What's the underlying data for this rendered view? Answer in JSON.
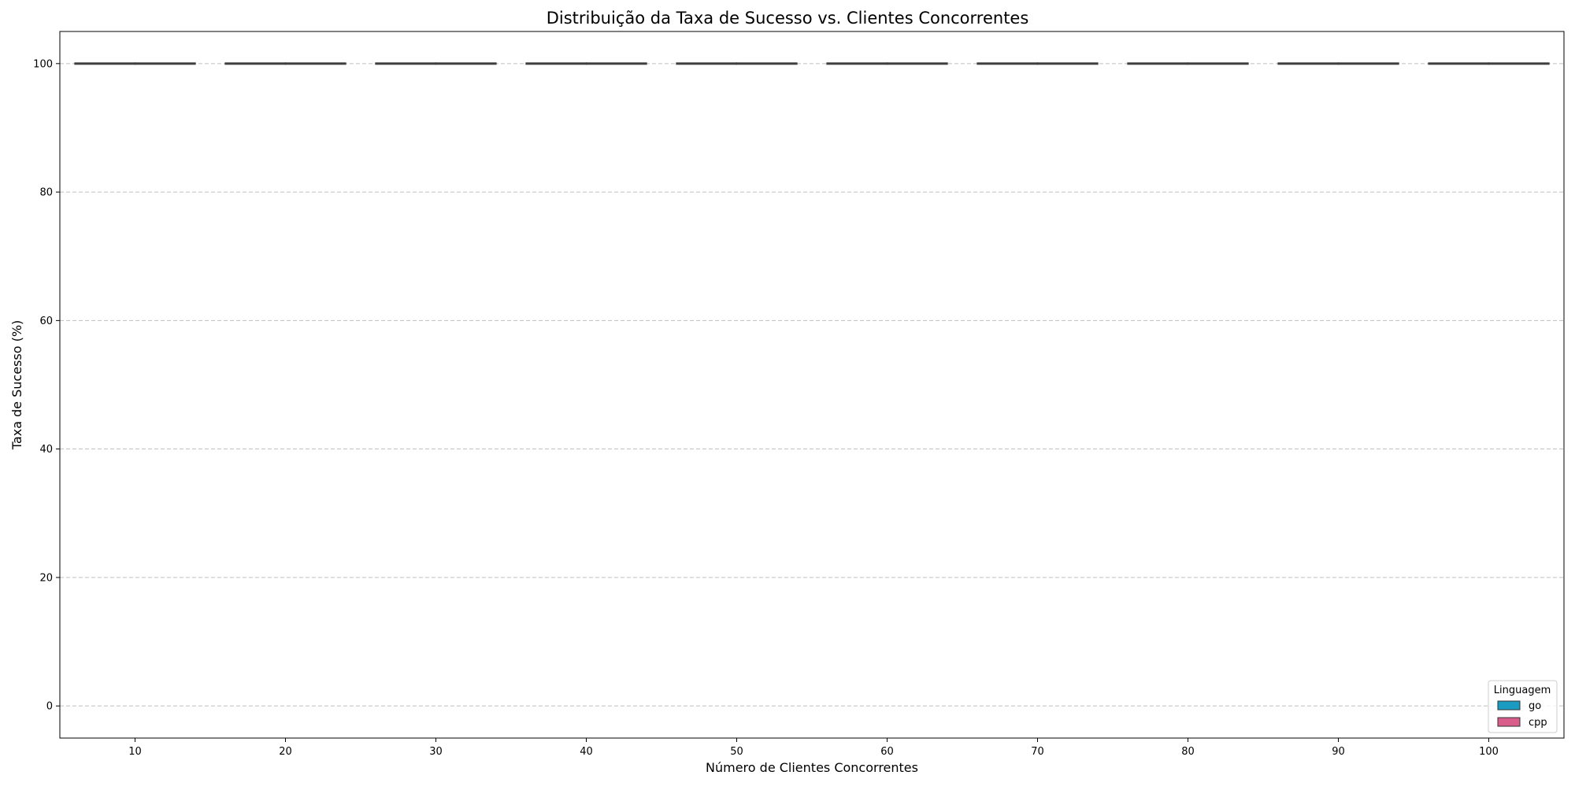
{
  "chart_data": {
    "type": "box",
    "title": "Distribuição da Taxa de Sucesso vs. Clientes Concorrentes",
    "xlabel": "Número de Clientes Concorrentes",
    "ylabel": "Taxa de Sucesso (%)",
    "categories": [
      "10",
      "20",
      "30",
      "40",
      "50",
      "60",
      "70",
      "80",
      "90",
      "100"
    ],
    "ylim": [
      -5,
      105
    ],
    "yticks": [
      0,
      20,
      40,
      60,
      80,
      100
    ],
    "grid": true,
    "grid_axis": "y",
    "legend": {
      "title": "Linguagem",
      "position": "lower-right"
    },
    "series": [
      {
        "name": "go",
        "color": "#1a9bc2",
        "values": [
          100,
          100,
          100,
          100,
          100,
          100,
          100,
          100,
          100,
          100
        ]
      },
      {
        "name": "cpp",
        "color": "#d95d8a",
        "values": [
          100,
          100,
          100,
          100,
          100,
          100,
          100,
          100,
          100,
          100
        ]
      }
    ]
  }
}
